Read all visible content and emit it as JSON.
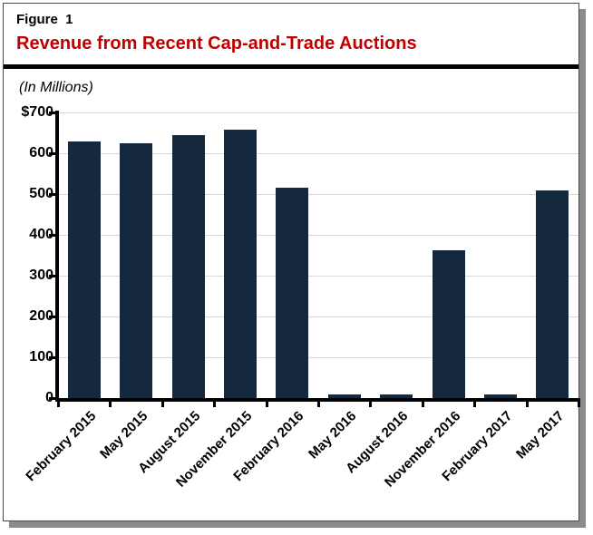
{
  "header": {
    "figure_label": "Figure  1",
    "title": "Revenue from Recent Cap-and-Trade Auctions",
    "title_color": "#c00000",
    "units_note": "(In Millions)"
  },
  "chart_data": {
    "type": "bar",
    "title": "Revenue from Recent Cap-and-Trade Auctions",
    "subtitle": "(In Millions)",
    "categories": [
      "February 2015",
      "May 2015",
      "August 2015",
      "November 2015",
      "February 2016",
      "May 2016",
      "August 2016",
      "November 2016",
      "February 2017",
      "May 2017"
    ],
    "values": [
      629,
      625,
      645,
      657,
      516,
      10,
      8,
      362,
      8,
      510
    ],
    "xlabel": "",
    "ylabel": "(In Millions)",
    "ylim": [
      0,
      700
    ],
    "ytick_step": 100,
    "ytick_labels_top_to_bottom": [
      "$700",
      "600",
      "500",
      "400",
      "300",
      "200",
      "100",
      "0"
    ],
    "grid": "horizontal",
    "legend": "none",
    "bar_color": "#14283e",
    "gridline_color": "#d9d9d9",
    "axis_color": "#000000",
    "label_color": "#000000"
  }
}
